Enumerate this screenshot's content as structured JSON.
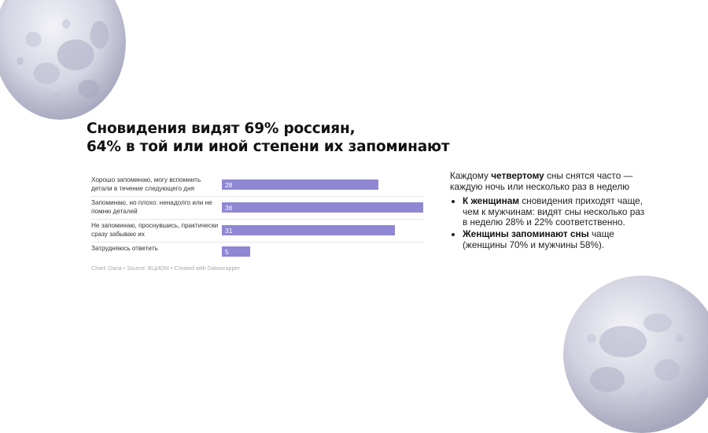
{
  "title": {
    "line1": "Сновидения видят 69% россиян,",
    "line2": "64% в той или иной степени их запоминают"
  },
  "chart_data": {
    "type": "bar",
    "orientation": "horizontal",
    "categories": [
      "Хорошо запоминаю, могу вспомнить детали в течение следующего дня",
      "Запоминаю, но плохо: ненадолго или не помню деталей",
      "Не запоминаю, проснувшись, практически сразу забываю их",
      "Затрудняюсь ответить"
    ],
    "values": [
      28,
      36,
      31,
      5
    ],
    "value_labels": [
      "28",
      "36",
      "31",
      "5"
    ],
    "bar_color": "#8f87d2",
    "xlim": [
      0,
      36
    ],
    "grid": false,
    "legend": "none"
  },
  "source_line": "Chart: Daria • Source: ВЦИОМ • Created with Datawrapper",
  "side": {
    "intro": {
      "before": "Каждому ",
      "bold": "четвертому",
      "after": " сны снятся часто — каждую ночь или несколько раз в неделю"
    },
    "bullets": [
      {
        "bold": "К женщинам",
        "text": " сновидения приходят чаще, чем к мужчинам: видят сны несколько раз в неделю 28% и 22% соответственно."
      },
      {
        "bold": "Женщины запоминают сны",
        "text": " чаще (женщины 70% и мужчины 58%)."
      }
    ]
  },
  "colors": {
    "accent": "#8f87d2",
    "moon": "#d4d4e2"
  }
}
